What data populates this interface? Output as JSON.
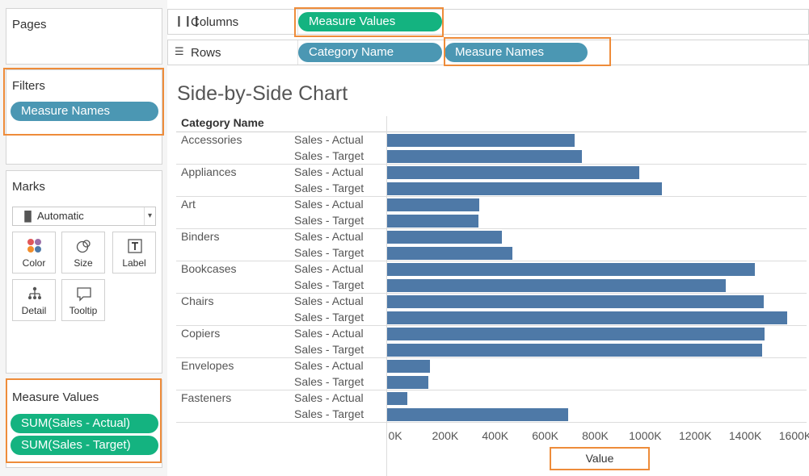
{
  "left_panel": {
    "pages": {
      "title": "Pages"
    },
    "filters": {
      "title": "Filters",
      "pills": [
        "Measure Names"
      ]
    },
    "marks": {
      "title": "Marks",
      "mark_type": "Automatic",
      "buttons": [
        "Color",
        "Size",
        "Label",
        "Detail",
        "Tooltip"
      ]
    },
    "measure_values": {
      "title": "Measure Values",
      "pills": [
        "SUM(Sales - Actual)",
        "SUM(Sales - Target)"
      ]
    }
  },
  "shelves": {
    "columns": {
      "label": "Columns",
      "pills": [
        "Measure Values"
      ]
    },
    "rows": {
      "label": "Rows",
      "pills": [
        "Category Name",
        "Measure Names"
      ]
    }
  },
  "view": {
    "title": "Side-by-Side Chart",
    "row_header": "Category Name",
    "axis_title": "Value"
  },
  "colors": {
    "bar": "#4e79a7",
    "pill_blue": "#4b97b3",
    "pill_green": "#14b380",
    "highlight": "#ee8c3a"
  },
  "chart_data": {
    "type": "bar",
    "orientation": "horizontal",
    "categories": [
      "Accessories",
      "Appliances",
      "Art",
      "Binders",
      "Bookcases",
      "Chairs",
      "Copiers",
      "Envelopes",
      "Fasteners"
    ],
    "series": [
      {
        "name": "Sales - Actual",
        "values": [
          750000,
          1010000,
          370000,
          460000,
          1470000,
          1505000,
          1510000,
          170000,
          80000
        ]
      },
      {
        "name": "Sales - Target",
        "values": [
          780000,
          1100000,
          365000,
          500000,
          1355000,
          1600000,
          1500000,
          165000,
          725000
        ]
      }
    ],
    "xlim": [
      0,
      1650000
    ],
    "x_ticks": [
      0,
      200000,
      400000,
      600000,
      800000,
      1000000,
      1200000,
      1400000,
      1600000
    ],
    "x_tick_labels": [
      "0K",
      "200K",
      "400K",
      "600K",
      "800K",
      "1000K",
      "1200K",
      "1400K",
      "1600K"
    ],
    "xlabel": "Value"
  }
}
